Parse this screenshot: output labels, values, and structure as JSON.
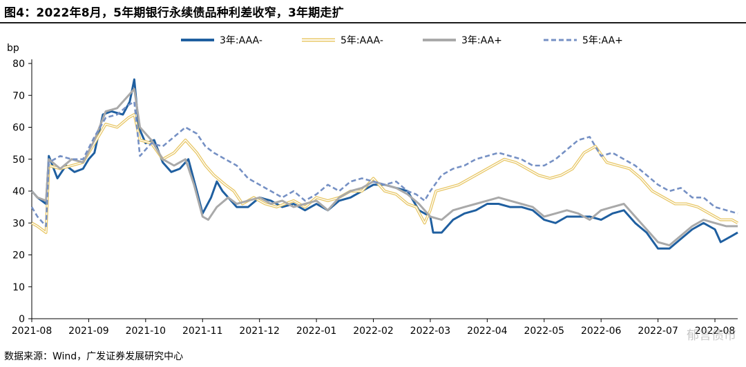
{
  "title": "图4：2022年8月，5年期银行永续债品种利差收窄，3年期走扩",
  "source": "数据来源：Wind，广发证券发展研究中心",
  "watermark_text": "郁言债市",
  "chart_data": {
    "type": "line",
    "ylabel": "bp",
    "ylim": [
      0,
      80
    ],
    "yticks": [
      0,
      10,
      20,
      30,
      40,
      50,
      60,
      70,
      80
    ],
    "x_ticks": [
      "2021-08",
      "2021-09",
      "2021-10",
      "2021-11",
      "2021-12",
      "2022-01",
      "2022-02",
      "2022-03",
      "2022-04",
      "2022-05",
      "2022-06",
      "2022-07",
      "2022-08"
    ],
    "x_range": [
      0,
      12.4
    ],
    "legend_position": "top",
    "series": [
      {
        "name": "3年:AAA-",
        "color": "#1f5fa0",
        "style": "solid",
        "points": [
          [
            0,
            40
          ],
          [
            0.1,
            38
          ],
          [
            0.25,
            36
          ],
          [
            0.3,
            51
          ],
          [
            0.45,
            44
          ],
          [
            0.6,
            48
          ],
          [
            0.75,
            46
          ],
          [
            0.9,
            47
          ],
          [
            1.0,
            50
          ],
          [
            1.1,
            52
          ],
          [
            1.25,
            64
          ],
          [
            1.4,
            65
          ],
          [
            1.6,
            64
          ],
          [
            1.72,
            68
          ],
          [
            1.8,
            75
          ],
          [
            1.88,
            60
          ],
          [
            2.0,
            55
          ],
          [
            2.15,
            56
          ],
          [
            2.3,
            49
          ],
          [
            2.45,
            46
          ],
          [
            2.6,
            47
          ],
          [
            2.75,
            50
          ],
          [
            2.9,
            40
          ],
          [
            3.0,
            33
          ],
          [
            3.15,
            38
          ],
          [
            3.25,
            43
          ],
          [
            3.35,
            40
          ],
          [
            3.45,
            38
          ],
          [
            3.6,
            35
          ],
          [
            3.8,
            35
          ],
          [
            4.0,
            38
          ],
          [
            4.2,
            37
          ],
          [
            4.4,
            35
          ],
          [
            4.6,
            36
          ],
          [
            4.8,
            34
          ],
          [
            5.0,
            36
          ],
          [
            5.2,
            34
          ],
          [
            5.4,
            37
          ],
          [
            5.6,
            38
          ],
          [
            5.8,
            40
          ],
          [
            6.0,
            42
          ],
          [
            6.2,
            42
          ],
          [
            6.4,
            41
          ],
          [
            6.6,
            40
          ],
          [
            6.8,
            34
          ],
          [
            7.0,
            32
          ],
          [
            7.05,
            27
          ],
          [
            7.2,
            27
          ],
          [
            7.4,
            31
          ],
          [
            7.6,
            33
          ],
          [
            7.8,
            34
          ],
          [
            8.0,
            36
          ],
          [
            8.2,
            36
          ],
          [
            8.4,
            35
          ],
          [
            8.6,
            35
          ],
          [
            8.8,
            34
          ],
          [
            9.0,
            31
          ],
          [
            9.2,
            30
          ],
          [
            9.4,
            32
          ],
          [
            9.6,
            32
          ],
          [
            9.8,
            32
          ],
          [
            10.0,
            31
          ],
          [
            10.2,
            33
          ],
          [
            10.4,
            34
          ],
          [
            10.6,
            30
          ],
          [
            10.8,
            27
          ],
          [
            11.0,
            22
          ],
          [
            11.2,
            22
          ],
          [
            11.4,
            25
          ],
          [
            11.6,
            28
          ],
          [
            11.8,
            30
          ],
          [
            12.0,
            28
          ],
          [
            12.1,
            24
          ],
          [
            12.3,
            26
          ],
          [
            12.4,
            27
          ]
        ]
      },
      {
        "name": "5年:AAA-",
        "color": "#e8c766",
        "style": "double",
        "points": [
          [
            0,
            30
          ],
          [
            0.1,
            29
          ],
          [
            0.25,
            27
          ],
          [
            0.3,
            48
          ],
          [
            0.5,
            47
          ],
          [
            0.7,
            48
          ],
          [
            0.9,
            49
          ],
          [
            1.1,
            55
          ],
          [
            1.3,
            61
          ],
          [
            1.5,
            60
          ],
          [
            1.7,
            63
          ],
          [
            1.8,
            64
          ],
          [
            1.9,
            56
          ],
          [
            2.1,
            55
          ],
          [
            2.3,
            50
          ],
          [
            2.5,
            52
          ],
          [
            2.7,
            56
          ],
          [
            2.9,
            52
          ],
          [
            3.05,
            48
          ],
          [
            3.2,
            45
          ],
          [
            3.4,
            42
          ],
          [
            3.55,
            40
          ],
          [
            3.7,
            36
          ],
          [
            3.9,
            38
          ],
          [
            4.1,
            36
          ],
          [
            4.3,
            35
          ],
          [
            4.6,
            37
          ],
          [
            4.8,
            35
          ],
          [
            5.0,
            38
          ],
          [
            5.2,
            37
          ],
          [
            5.4,
            38
          ],
          [
            5.6,
            40
          ],
          [
            5.8,
            40
          ],
          [
            6.0,
            44
          ],
          [
            6.2,
            40
          ],
          [
            6.4,
            39
          ],
          [
            6.6,
            36
          ],
          [
            6.75,
            35
          ],
          [
            6.9,
            30
          ],
          [
            7.0,
            34
          ],
          [
            7.1,
            40
          ],
          [
            7.3,
            41
          ],
          [
            7.5,
            42
          ],
          [
            7.7,
            44
          ],
          [
            7.9,
            46
          ],
          [
            8.1,
            48
          ],
          [
            8.3,
            50
          ],
          [
            8.5,
            49
          ],
          [
            8.7,
            47
          ],
          [
            8.9,
            45
          ],
          [
            9.1,
            44
          ],
          [
            9.3,
            45
          ],
          [
            9.5,
            47
          ],
          [
            9.7,
            52
          ],
          [
            9.9,
            54
          ],
          [
            10.1,
            49
          ],
          [
            10.3,
            48
          ],
          [
            10.5,
            47
          ],
          [
            10.7,
            44
          ],
          [
            10.9,
            40
          ],
          [
            11.1,
            38
          ],
          [
            11.3,
            36
          ],
          [
            11.5,
            36
          ],
          [
            11.7,
            35
          ],
          [
            11.9,
            33
          ],
          [
            12.1,
            31
          ],
          [
            12.3,
            31
          ],
          [
            12.4,
            30
          ]
        ]
      },
      {
        "name": "3年:AA+",
        "color": "#a9a9a9",
        "style": "solid",
        "points": [
          [
            0,
            40
          ],
          [
            0.1,
            38
          ],
          [
            0.25,
            37
          ],
          [
            0.3,
            50
          ],
          [
            0.5,
            47
          ],
          [
            0.7,
            50
          ],
          [
            0.9,
            49
          ],
          [
            1.1,
            56
          ],
          [
            1.3,
            65
          ],
          [
            1.5,
            66
          ],
          [
            1.7,
            70
          ],
          [
            1.8,
            72
          ],
          [
            1.9,
            60
          ],
          [
            2.1,
            56
          ],
          [
            2.3,
            50
          ],
          [
            2.5,
            48
          ],
          [
            2.7,
            50
          ],
          [
            2.85,
            42
          ],
          [
            3.0,
            32
          ],
          [
            3.1,
            31
          ],
          [
            3.25,
            35
          ],
          [
            3.45,
            38
          ],
          [
            3.6,
            36
          ],
          [
            3.8,
            37
          ],
          [
            4.0,
            38
          ],
          [
            4.2,
            36
          ],
          [
            4.4,
            37
          ],
          [
            4.6,
            35
          ],
          [
            4.8,
            36
          ],
          [
            5.0,
            37
          ],
          [
            5.2,
            34
          ],
          [
            5.4,
            38
          ],
          [
            5.6,
            40
          ],
          [
            5.8,
            41
          ],
          [
            6.0,
            43
          ],
          [
            6.2,
            42
          ],
          [
            6.4,
            41
          ],
          [
            6.6,
            39
          ],
          [
            6.8,
            36
          ],
          [
            7.0,
            32
          ],
          [
            7.2,
            31
          ],
          [
            7.4,
            34
          ],
          [
            7.6,
            35
          ],
          [
            7.8,
            36
          ],
          [
            8.0,
            37
          ],
          [
            8.2,
            38
          ],
          [
            8.4,
            37
          ],
          [
            8.6,
            36
          ],
          [
            8.8,
            35
          ],
          [
            9.0,
            32
          ],
          [
            9.2,
            33
          ],
          [
            9.4,
            34
          ],
          [
            9.6,
            33
          ],
          [
            9.8,
            31
          ],
          [
            10.0,
            34
          ],
          [
            10.2,
            35
          ],
          [
            10.4,
            36
          ],
          [
            10.6,
            32
          ],
          [
            10.8,
            28
          ],
          [
            11.0,
            24
          ],
          [
            11.2,
            23
          ],
          [
            11.4,
            26
          ],
          [
            11.6,
            29
          ],
          [
            11.8,
            31
          ],
          [
            12.0,
            30
          ],
          [
            12.2,
            29
          ],
          [
            12.4,
            29
          ]
        ]
      },
      {
        "name": "5年:AA+",
        "color": "#7590c4",
        "style": "dashed",
        "points": [
          [
            0,
            35
          ],
          [
            0.1,
            32
          ],
          [
            0.25,
            29
          ],
          [
            0.3,
            49
          ],
          [
            0.5,
            51
          ],
          [
            0.7,
            50
          ],
          [
            0.9,
            50
          ],
          [
            1.1,
            57
          ],
          [
            1.3,
            63
          ],
          [
            1.5,
            64
          ],
          [
            1.7,
            67
          ],
          [
            1.8,
            68
          ],
          [
            1.9,
            51
          ],
          [
            2.1,
            55
          ],
          [
            2.3,
            54
          ],
          [
            2.5,
            57
          ],
          [
            2.7,
            60
          ],
          [
            2.9,
            58
          ],
          [
            3.05,
            54
          ],
          [
            3.2,
            52
          ],
          [
            3.4,
            50
          ],
          [
            3.6,
            48
          ],
          [
            3.8,
            44
          ],
          [
            4.0,
            42
          ],
          [
            4.2,
            40
          ],
          [
            4.4,
            38
          ],
          [
            4.6,
            40
          ],
          [
            4.8,
            37
          ],
          [
            5.0,
            39
          ],
          [
            5.2,
            42
          ],
          [
            5.4,
            40
          ],
          [
            5.6,
            43
          ],
          [
            5.8,
            44
          ],
          [
            6.0,
            43
          ],
          [
            6.2,
            42
          ],
          [
            6.4,
            43
          ],
          [
            6.6,
            40
          ],
          [
            6.75,
            39
          ],
          [
            6.9,
            37
          ],
          [
            7.0,
            40
          ],
          [
            7.2,
            45
          ],
          [
            7.4,
            47
          ],
          [
            7.6,
            48
          ],
          [
            7.8,
            50
          ],
          [
            8.0,
            51
          ],
          [
            8.2,
            52
          ],
          [
            8.4,
            51
          ],
          [
            8.6,
            50
          ],
          [
            8.8,
            48
          ],
          [
            9.0,
            48
          ],
          [
            9.2,
            50
          ],
          [
            9.4,
            53
          ],
          [
            9.6,
            56
          ],
          [
            9.8,
            57
          ],
          [
            10.0,
            51
          ],
          [
            10.2,
            52
          ],
          [
            10.4,
            50
          ],
          [
            10.6,
            48
          ],
          [
            10.8,
            45
          ],
          [
            11.0,
            42
          ],
          [
            11.2,
            40
          ],
          [
            11.4,
            41
          ],
          [
            11.6,
            38
          ],
          [
            11.8,
            38
          ],
          [
            12.0,
            35
          ],
          [
            12.2,
            34
          ],
          [
            12.4,
            33
          ]
        ]
      }
    ]
  }
}
